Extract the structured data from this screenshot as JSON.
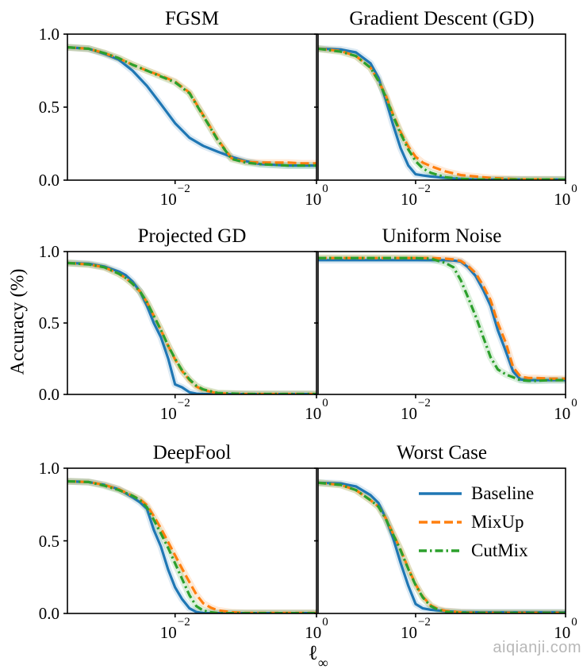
{
  "figure": {
    "ylabel": "Accuracy (%)",
    "xlabel_base": "ℓ",
    "xlabel_sub": "∞",
    "watermark": "aiqianji.com",
    "colors": {
      "baseline": "#1f77b4",
      "mixup": "#ff7f0e",
      "cutmix": "#2ca02c",
      "spine": "#000000",
      "watermark": "#b8b8b8"
    }
  },
  "legend": {
    "position": "upper-right-of-worst-case-panel",
    "entries": [
      {
        "label": "Baseline",
        "key": "baseline",
        "style": "solid"
      },
      {
        "label": "MixUp",
        "key": "mixup",
        "style": "dashed"
      },
      {
        "label": "CutMix",
        "key": "cutmix",
        "style": "dashdot"
      }
    ]
  },
  "chart_data": [
    {
      "id": "fgsm",
      "title": "FGSM",
      "type": "line",
      "xscale": "log",
      "xlim": [
        0.0003,
        1.0
      ],
      "ylim": [
        0,
        1
      ],
      "grid": false,
      "xticks": [
        {
          "value": 0.01,
          "base": "10",
          "exp": "−2"
        },
        {
          "value": 1.0,
          "base": "10",
          "exp": "0"
        }
      ],
      "yticks": [
        {
          "value": 0.0,
          "label": "0.0"
        },
        {
          "value": 0.5,
          "label": "0.5"
        },
        {
          "value": 1.0,
          "label": "1.0"
        }
      ],
      "ytick_labels_visible": true,
      "x": [
        0.0003,
        0.0006,
        0.001,
        0.0016,
        0.0025,
        0.004,
        0.0063,
        0.01,
        0.016,
        0.025,
        0.04,
        0.063,
        0.1,
        0.16,
        0.25,
        0.4,
        0.63,
        1.0
      ],
      "series": [
        {
          "name": "Baseline",
          "key": "baseline",
          "style": "solid",
          "values": [
            0.91,
            0.9,
            0.865,
            0.825,
            0.75,
            0.645,
            0.52,
            0.39,
            0.29,
            0.235,
            0.195,
            0.16,
            0.13,
            0.11,
            0.105,
            0.1,
            0.1,
            0.1
          ]
        },
        {
          "name": "MixUp",
          "key": "mixup",
          "style": "dashed",
          "values": [
            0.91,
            0.9,
            0.87,
            0.835,
            0.79,
            0.75,
            0.715,
            0.675,
            0.6,
            0.445,
            0.28,
            0.15,
            0.125,
            0.12,
            0.12,
            0.12,
            0.115,
            0.115
          ]
        },
        {
          "name": "CutMix",
          "key": "cutmix",
          "style": "dashdot",
          "values": [
            0.91,
            0.9,
            0.87,
            0.835,
            0.79,
            0.75,
            0.71,
            0.67,
            0.595,
            0.44,
            0.275,
            0.145,
            0.12,
            0.11,
            0.105,
            0.1,
            0.1,
            0.1
          ]
        }
      ]
    },
    {
      "id": "gd",
      "title": "Gradient Descent (GD)",
      "type": "line",
      "xscale": "log",
      "xlim": [
        0.0005,
        1.0
      ],
      "ylim": [
        0,
        1
      ],
      "grid": false,
      "xticks": [
        {
          "value": 0.01,
          "base": "10",
          "exp": "−2"
        },
        {
          "value": 1.0,
          "base": "10",
          "exp": "0"
        }
      ],
      "yticks": [
        {
          "value": 0.0,
          "label": "0.0"
        },
        {
          "value": 0.5,
          "label": "0.5"
        },
        {
          "value": 1.0,
          "label": "1.0"
        }
      ],
      "ytick_labels_visible": false,
      "x": [
        0.0005,
        0.001,
        0.0016,
        0.0025,
        0.0032,
        0.004,
        0.005,
        0.0063,
        0.008,
        0.01,
        0.0125,
        0.016,
        0.025,
        0.04,
        0.063,
        0.1,
        0.25,
        1.0
      ],
      "series": [
        {
          "name": "Baseline",
          "key": "baseline",
          "style": "solid",
          "values": [
            0.9,
            0.895,
            0.875,
            0.8,
            0.7,
            0.55,
            0.38,
            0.22,
            0.1,
            0.04,
            0.032,
            0.025,
            0.015,
            0.008,
            0.005,
            0.005,
            0.005,
            0.005
          ]
        },
        {
          "name": "MixUp",
          "key": "mixup",
          "style": "dashed",
          "values": [
            0.9,
            0.885,
            0.85,
            0.77,
            0.68,
            0.58,
            0.45,
            0.33,
            0.23,
            0.16,
            0.12,
            0.095,
            0.06,
            0.035,
            0.025,
            0.015,
            0.006,
            0.005
          ]
        },
        {
          "name": "CutMix",
          "key": "cutmix",
          "style": "dashdot",
          "values": [
            0.9,
            0.88,
            0.85,
            0.77,
            0.68,
            0.57,
            0.44,
            0.32,
            0.21,
            0.13,
            0.08,
            0.05,
            0.02,
            0.01,
            0.005,
            0.005,
            0.005,
            0.005
          ]
        }
      ]
    },
    {
      "id": "pgd",
      "title": "Projected GD",
      "type": "line",
      "xscale": "log",
      "xlim": [
        0.0003,
        1.0
      ],
      "ylim": [
        0,
        1
      ],
      "grid": false,
      "xticks": [
        {
          "value": 0.01,
          "base": "10",
          "exp": "−2"
        },
        {
          "value": 1.0,
          "base": "10",
          "exp": "0"
        }
      ],
      "yticks": [
        {
          "value": 0.0,
          "label": "0.0"
        },
        {
          "value": 0.5,
          "label": "0.5"
        },
        {
          "value": 1.0,
          "label": "1.0"
        }
      ],
      "ytick_labels_visible": true,
      "x": [
        0.0003,
        0.0006,
        0.001,
        0.0016,
        0.002,
        0.0025,
        0.0032,
        0.004,
        0.005,
        0.0063,
        0.008,
        0.01,
        0.0125,
        0.016,
        0.02,
        0.025,
        0.04,
        0.1,
        1.0
      ],
      "series": [
        {
          "name": "Baseline",
          "key": "baseline",
          "style": "solid",
          "values": [
            0.92,
            0.915,
            0.895,
            0.86,
            0.835,
            0.79,
            0.72,
            0.62,
            0.5,
            0.4,
            0.25,
            0.07,
            0.05,
            0.015,
            0.005,
            0.003,
            0.002,
            0.002,
            0.002
          ]
        },
        {
          "name": "MixUp",
          "key": "mixup",
          "style": "dashed",
          "values": [
            0.92,
            0.91,
            0.89,
            0.845,
            0.815,
            0.775,
            0.72,
            0.645,
            0.55,
            0.45,
            0.34,
            0.245,
            0.165,
            0.1,
            0.055,
            0.03,
            0.008,
            0.003,
            0.003
          ]
        },
        {
          "name": "CutMix",
          "key": "cutmix",
          "style": "dashdot",
          "values": [
            0.92,
            0.91,
            0.89,
            0.845,
            0.815,
            0.775,
            0.72,
            0.645,
            0.55,
            0.45,
            0.34,
            0.25,
            0.17,
            0.105,
            0.06,
            0.035,
            0.01,
            0.003,
            0.003
          ]
        }
      ]
    },
    {
      "id": "uniform",
      "title": "Uniform Noise",
      "type": "line",
      "xscale": "log",
      "xlim": [
        0.0005,
        1.0
      ],
      "ylim": [
        0,
        1
      ],
      "grid": false,
      "xticks": [
        {
          "value": 0.01,
          "base": "10",
          "exp": "−2"
        },
        {
          "value": 1.0,
          "base": "10",
          "exp": "0"
        }
      ],
      "yticks": [
        {
          "value": 0.0,
          "label": "0.0"
        },
        {
          "value": 0.5,
          "label": "0.5"
        },
        {
          "value": 1.0,
          "label": "1.0"
        }
      ],
      "ytick_labels_visible": false,
      "x": [
        0.0005,
        0.001,
        0.0032,
        0.01,
        0.016,
        0.025,
        0.032,
        0.04,
        0.05,
        0.063,
        0.08,
        0.1,
        0.125,
        0.16,
        0.2,
        0.25,
        0.32,
        0.4,
        0.63,
        1.0
      ],
      "series": [
        {
          "name": "Baseline",
          "key": "baseline",
          "style": "solid",
          "values": [
            0.94,
            0.94,
            0.94,
            0.94,
            0.94,
            0.94,
            0.937,
            0.93,
            0.89,
            0.83,
            0.73,
            0.62,
            0.45,
            0.3,
            0.16,
            0.105,
            0.1,
            0.1,
            0.1,
            0.1
          ]
        },
        {
          "name": "MixUp",
          "key": "mixup",
          "style": "dashed",
          "values": [
            0.955,
            0.955,
            0.955,
            0.955,
            0.955,
            0.95,
            0.945,
            0.935,
            0.9,
            0.85,
            0.76,
            0.66,
            0.5,
            0.36,
            0.19,
            0.125,
            0.115,
            0.115,
            0.11,
            0.11
          ]
        },
        {
          "name": "CutMix",
          "key": "cutmix",
          "style": "dashdot",
          "values": [
            0.955,
            0.955,
            0.955,
            0.955,
            0.95,
            0.92,
            0.89,
            0.8,
            0.68,
            0.55,
            0.4,
            0.26,
            0.175,
            0.14,
            0.12,
            0.1,
            0.095,
            0.095,
            0.1,
            0.1
          ]
        }
      ]
    },
    {
      "id": "deepfool",
      "title": "DeepFool",
      "type": "line",
      "xscale": "log",
      "xlim": [
        0.0003,
        1.0
      ],
      "ylim": [
        0,
        1
      ],
      "grid": false,
      "xticks": [
        {
          "value": 0.01,
          "base": "10",
          "exp": "−2"
        },
        {
          "value": 1.0,
          "base": "10",
          "exp": "0"
        }
      ],
      "yticks": [
        {
          "value": 0.0,
          "label": "0.0"
        },
        {
          "value": 0.5,
          "label": "0.5"
        },
        {
          "value": 1.0,
          "label": "1.0"
        }
      ],
      "ytick_labels_visible": true,
      "x": [
        0.0003,
        0.0006,
        0.001,
        0.0016,
        0.0025,
        0.0032,
        0.004,
        0.005,
        0.0063,
        0.008,
        0.01,
        0.0125,
        0.016,
        0.02,
        0.025,
        0.032,
        0.04,
        0.063,
        0.1,
        1.0
      ],
      "series": [
        {
          "name": "Baseline",
          "key": "baseline",
          "style": "solid",
          "values": [
            0.91,
            0.905,
            0.885,
            0.855,
            0.8,
            0.765,
            0.72,
            0.575,
            0.46,
            0.3,
            0.18,
            0.1,
            0.035,
            0.01,
            0.003,
            0.002,
            0.002,
            0.002,
            0.002,
            0.002
          ]
        },
        {
          "name": "MixUp",
          "key": "mixup",
          "style": "dashed",
          "values": [
            0.91,
            0.905,
            0.885,
            0.855,
            0.81,
            0.785,
            0.745,
            0.67,
            0.585,
            0.49,
            0.4,
            0.31,
            0.215,
            0.13,
            0.07,
            0.04,
            0.022,
            0.008,
            0.004,
            0.004
          ]
        },
        {
          "name": "CutMix",
          "key": "cutmix",
          "style": "dashdot",
          "values": [
            0.91,
            0.905,
            0.88,
            0.85,
            0.81,
            0.78,
            0.73,
            0.645,
            0.55,
            0.45,
            0.345,
            0.24,
            0.125,
            0.05,
            0.02,
            0.008,
            0.003,
            0.002,
            0.002,
            0.002
          ]
        }
      ]
    },
    {
      "id": "worst",
      "title": "Worst Case",
      "type": "line",
      "xscale": "log",
      "xlim": [
        0.0005,
        1.0
      ],
      "ylim": [
        0,
        1
      ],
      "grid": false,
      "xticks": [
        {
          "value": 0.01,
          "base": "10",
          "exp": "−2"
        },
        {
          "value": 1.0,
          "base": "10",
          "exp": "0"
        }
      ],
      "yticks": [
        {
          "value": 0.0,
          "label": "0.0"
        },
        {
          "value": 0.5,
          "label": "0.5"
        },
        {
          "value": 1.0,
          "label": "1.0"
        }
      ],
      "ytick_labels_visible": false,
      "x": [
        0.0005,
        0.001,
        0.0016,
        0.0025,
        0.0032,
        0.004,
        0.005,
        0.0063,
        0.008,
        0.01,
        0.0125,
        0.016,
        0.02,
        0.025,
        0.04,
        0.063,
        0.1,
        0.25,
        1.0
      ],
      "series": [
        {
          "name": "Baseline",
          "key": "baseline",
          "style": "solid",
          "values": [
            0.9,
            0.895,
            0.875,
            0.815,
            0.76,
            0.655,
            0.52,
            0.35,
            0.19,
            0.065,
            0.035,
            0.025,
            0.02,
            0.015,
            0.01,
            0.008,
            0.008,
            0.008,
            0.008
          ]
        },
        {
          "name": "MixUp",
          "key": "mixup",
          "style": "dashed",
          "values": [
            0.9,
            0.885,
            0.85,
            0.78,
            0.735,
            0.655,
            0.55,
            0.44,
            0.31,
            0.2,
            0.115,
            0.055,
            0.03,
            0.018,
            0.008,
            0.005,
            0.005,
            0.005,
            0.005
          ]
        },
        {
          "name": "CutMix",
          "key": "cutmix",
          "style": "dashdot",
          "values": [
            0.9,
            0.885,
            0.85,
            0.78,
            0.735,
            0.65,
            0.545,
            0.435,
            0.305,
            0.195,
            0.11,
            0.05,
            0.025,
            0.012,
            0.005,
            0.004,
            0.004,
            0.004,
            0.004
          ]
        }
      ]
    }
  ]
}
